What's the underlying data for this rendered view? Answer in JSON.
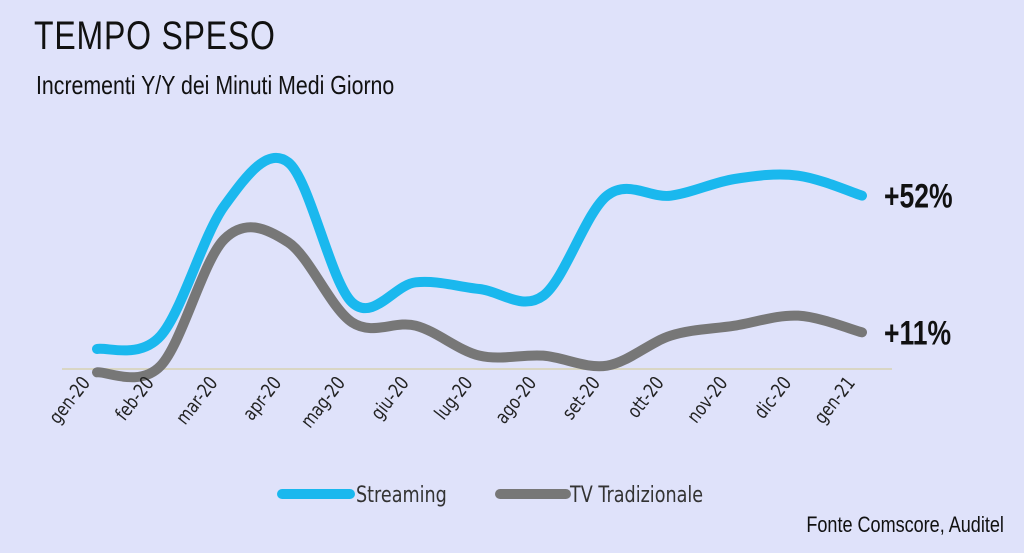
{
  "header": {
    "title": "TEMPO SPESO",
    "subtitle": "Incrementi Y/Y dei Minuti Medi Giorno"
  },
  "source": "Fonte Comscore, Auditel",
  "chart_data": {
    "type": "line",
    "categories": [
      "gen-20",
      "feb-20",
      "mar-20",
      "apr-20",
      "mag-20",
      "giu-20",
      "lug-20",
      "ago-20",
      "set-20",
      "ott-20",
      "nov-20",
      "dic-20",
      "gen-21"
    ],
    "series": [
      {
        "name": "Streaming",
        "color": "#1ab8ee",
        "values": [
          6,
          10,
          49,
          62,
          20,
          26,
          24,
          22,
          52,
          52,
          57,
          58,
          52
        ],
        "end_label": "+52%"
      },
      {
        "name": "TV Tradizionale",
        "color": "#777777",
        "values": [
          -1,
          1,
          39,
          38,
          14,
          13,
          4,
          4,
          1,
          10,
          13,
          16,
          11
        ],
        "end_label": "+11%"
      }
    ],
    "legend_position": "bottom",
    "grid": false
  }
}
